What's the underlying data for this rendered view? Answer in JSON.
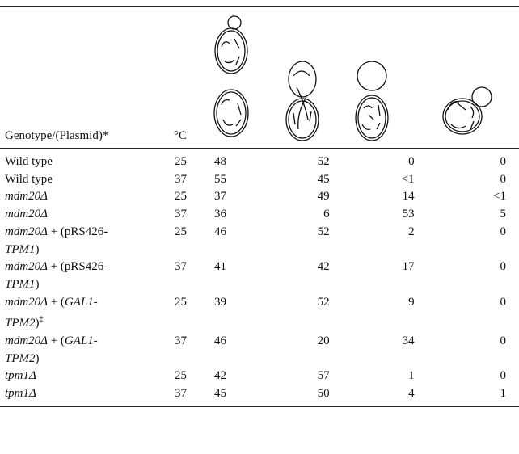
{
  "table": {
    "header": {
      "genotype": "Genotype/(Plasmid)*",
      "temperature": "°C"
    },
    "rows": [
      {
        "genotype": [
          [
            {
              "text": "Wild type"
            }
          ]
        ],
        "temperature": 25,
        "values": [
          48,
          52,
          0,
          0
        ]
      },
      {
        "genotype": [
          [
            {
              "text": "Wild type"
            }
          ]
        ],
        "temperature": 37,
        "values": [
          55,
          45,
          "<1",
          0
        ]
      },
      {
        "genotype": [
          [
            {
              "text": "mdm20Δ",
              "italic": true
            }
          ]
        ],
        "temperature": 25,
        "values": [
          37,
          49,
          14,
          "<1"
        ]
      },
      {
        "genotype": [
          [
            {
              "text": "mdm20Δ",
              "italic": true
            }
          ]
        ],
        "temperature": 37,
        "values": [
          36,
          6,
          53,
          5
        ]
      },
      {
        "genotype": [
          [
            {
              "text": "mdm20Δ",
              "italic": true
            },
            {
              "text": " + (pRS426-"
            }
          ],
          [
            {
              "text": "TPM1",
              "italic": true
            },
            {
              "text": ")"
            }
          ]
        ],
        "temperature": 25,
        "values": [
          46,
          52,
          2,
          0
        ]
      },
      {
        "genotype": [
          [
            {
              "text": "mdm20Δ",
              "italic": true
            },
            {
              "text": " + (pRS426-"
            }
          ],
          [
            {
              "text": "TPM1",
              "italic": true
            },
            {
              "text": ")"
            }
          ]
        ],
        "temperature": 37,
        "values": [
          41,
          42,
          17,
          0
        ]
      },
      {
        "genotype": [
          [
            {
              "text": "mdm20Δ",
              "italic": true
            },
            {
              "text": " + ("
            },
            {
              "text": "GAL1-",
              "italic": true
            }
          ],
          [
            {
              "text": "TPM2",
              "italic": true
            },
            {
              "text": ")"
            },
            {
              "text": "‡",
              "sup": true
            }
          ]
        ],
        "temperature": 25,
        "values": [
          39,
          52,
          9,
          0
        ]
      },
      {
        "genotype": [
          [
            {
              "text": "mdm20Δ",
              "italic": true
            },
            {
              "text": " + ("
            },
            {
              "text": "GAL1-",
              "italic": true
            }
          ],
          [
            {
              "text": "TPM2",
              "italic": true
            },
            {
              "text": ")"
            }
          ]
        ],
        "temperature": 37,
        "values": [
          46,
          20,
          34,
          0
        ]
      },
      {
        "genotype": [
          [
            {
              "text": "tpm1Δ",
              "italic": true
            }
          ]
        ],
        "temperature": 25,
        "values": [
          42,
          57,
          1,
          0
        ]
      },
      {
        "genotype": [
          [
            {
              "text": "tpm1Δ",
              "italic": true
            }
          ]
        ],
        "temperature": 37,
        "values": [
          45,
          50,
          4,
          1
        ]
      }
    ]
  }
}
